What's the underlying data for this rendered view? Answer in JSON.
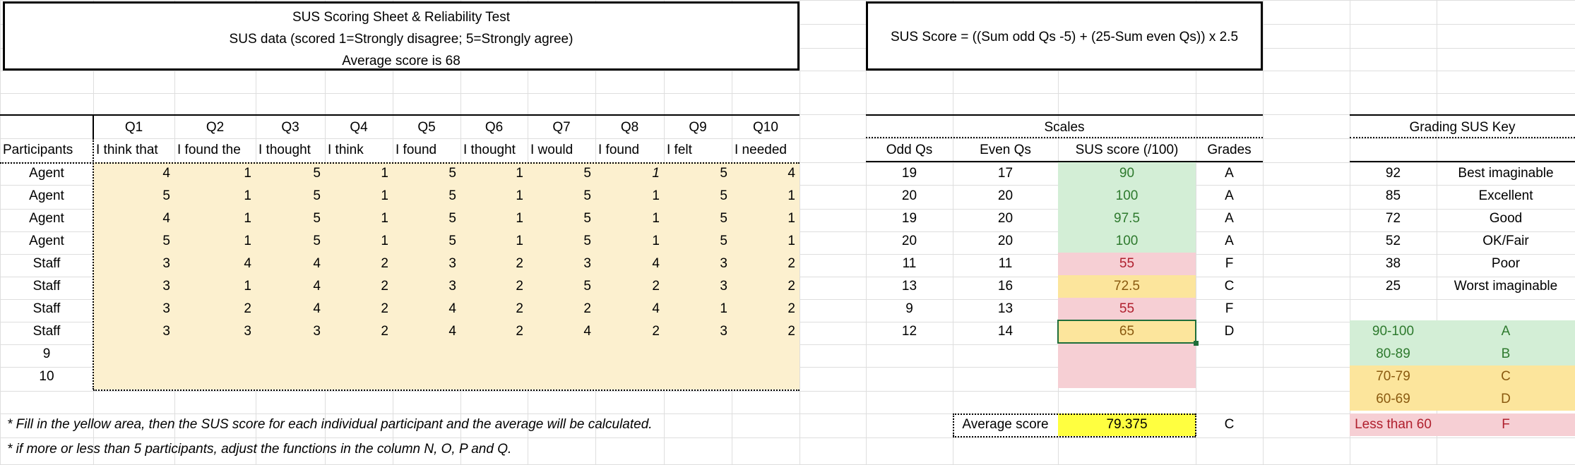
{
  "header": {
    "title": "SUS Scoring Sheet & Reliability Test",
    "subtitle": "SUS data (scored 1=Strongly disagree; 5=Strongly agree)",
    "avg_line": "Average score is 68",
    "formula": "SUS Score = ((Sum odd Qs -5) + (25-Sum even Qs)) x 2.5"
  },
  "questions": [
    {
      "id": "Q1",
      "text": "I think that"
    },
    {
      "id": "Q2",
      "text": "I found the"
    },
    {
      "id": "Q3",
      "text": "I thought"
    },
    {
      "id": "Q4",
      "text": "I think"
    },
    {
      "id": "Q5",
      "text": "I found"
    },
    {
      "id": "Q6",
      "text": "I thought"
    },
    {
      "id": "Q7",
      "text": "I would"
    },
    {
      "id": "Q8",
      "text": "I found"
    },
    {
      "id": "Q9",
      "text": "I felt"
    },
    {
      "id": "Q10",
      "text": "I needed"
    }
  ],
  "labels": {
    "participants": "Participants",
    "scales": "Scales",
    "odd": "Odd Qs",
    "even": "Even Qs",
    "sus": "SUS score (/100)",
    "grades": "Grades",
    "key_title": "Grading SUS Key",
    "average": "Average score"
  },
  "rows": [
    {
      "p": "Agent",
      "v": [
        "4",
        "1",
        "5",
        "1",
        "5",
        "1",
        "5",
        "1",
        "5",
        "4"
      ],
      "odd": "19",
      "even": "17",
      "sus": "90",
      "grade": "A",
      "color": "green"
    },
    {
      "p": "Agent",
      "v": [
        "5",
        "1",
        "5",
        "1",
        "5",
        "1",
        "5",
        "1",
        "5",
        "1"
      ],
      "odd": "20",
      "even": "20",
      "sus": "100",
      "grade": "A",
      "color": "green"
    },
    {
      "p": "Agent",
      "v": [
        "4",
        "1",
        "5",
        "1",
        "5",
        "1",
        "5",
        "1",
        "5",
        "1"
      ],
      "odd": "19",
      "even": "20",
      "sus": "97.5",
      "grade": "A",
      "color": "green"
    },
    {
      "p": "Agent",
      "v": [
        "5",
        "1",
        "5",
        "1",
        "5",
        "1",
        "5",
        "1",
        "5",
        "1"
      ],
      "odd": "20",
      "even": "20",
      "sus": "100",
      "grade": "A",
      "color": "green"
    },
    {
      "p": "Staff",
      "v": [
        "3",
        "4",
        "4",
        "2",
        "3",
        "2",
        "3",
        "4",
        "3",
        "2"
      ],
      "odd": "11",
      "even": "11",
      "sus": "55",
      "grade": "F",
      "color": "red"
    },
    {
      "p": "Staff",
      "v": [
        "3",
        "1",
        "4",
        "2",
        "3",
        "2",
        "5",
        "2",
        "3",
        "2"
      ],
      "odd": "13",
      "even": "16",
      "sus": "72.5",
      "grade": "C",
      "color": "orange"
    },
    {
      "p": "Staff",
      "v": [
        "3",
        "2",
        "4",
        "2",
        "4",
        "2",
        "2",
        "4",
        "1",
        "2"
      ],
      "odd": "9",
      "even": "13",
      "sus": "55",
      "grade": "F",
      "color": "red"
    },
    {
      "p": "Staff",
      "v": [
        "3",
        "3",
        "3",
        "2",
        "4",
        "2",
        "4",
        "2",
        "3",
        "2"
      ],
      "odd": "12",
      "even": "14",
      "sus": "65",
      "grade": "D",
      "color": "orange"
    },
    {
      "p": "9",
      "v": [
        "",
        "",
        "",
        "",
        "",
        "",
        "",
        "",
        "",
        ""
      ],
      "odd": "",
      "even": "",
      "sus": "",
      "grade": "",
      "color": "red"
    },
    {
      "p": "10",
      "v": [
        "",
        "",
        "",
        "",
        "",
        "",
        "",
        "",
        "",
        ""
      ],
      "odd": "",
      "even": "",
      "sus": "",
      "grade": "",
      "color": "red"
    }
  ],
  "average": {
    "value": "79.375",
    "grade": "C"
  },
  "key": [
    {
      "score": "92",
      "label": "Best imaginable"
    },
    {
      "score": "85",
      "label": "Excellent"
    },
    {
      "score": "72",
      "label": "Good"
    },
    {
      "score": "52",
      "label": "OK/Fair"
    },
    {
      "score": "38",
      "label": "Poor"
    },
    {
      "score": "25",
      "label": "Worst imaginable"
    }
  ],
  "grade_ranges": [
    {
      "range": "90-100",
      "grade": "A",
      "color": "green"
    },
    {
      "range": "80-89",
      "grade": "B",
      "color": "green"
    },
    {
      "range": "70-79",
      "grade": "C",
      "color": "orange"
    },
    {
      "range": "60-69",
      "grade": "D",
      "color": "orange"
    },
    {
      "range": "Less than 60",
      "grade": "F",
      "color": "red"
    }
  ],
  "notes": [
    "* Fill in the yellow area, then the SUS score for each individual participant and the average will be calculated.",
    "* if more or less than 5 participants, adjust the functions in the column N, O, P and Q."
  ],
  "colors": {
    "green": "#d3eed6",
    "red": "#f6cfd4",
    "orange": "#fce59c",
    "yellow": "#fcf0cf",
    "highlight": "#ffff40"
  }
}
